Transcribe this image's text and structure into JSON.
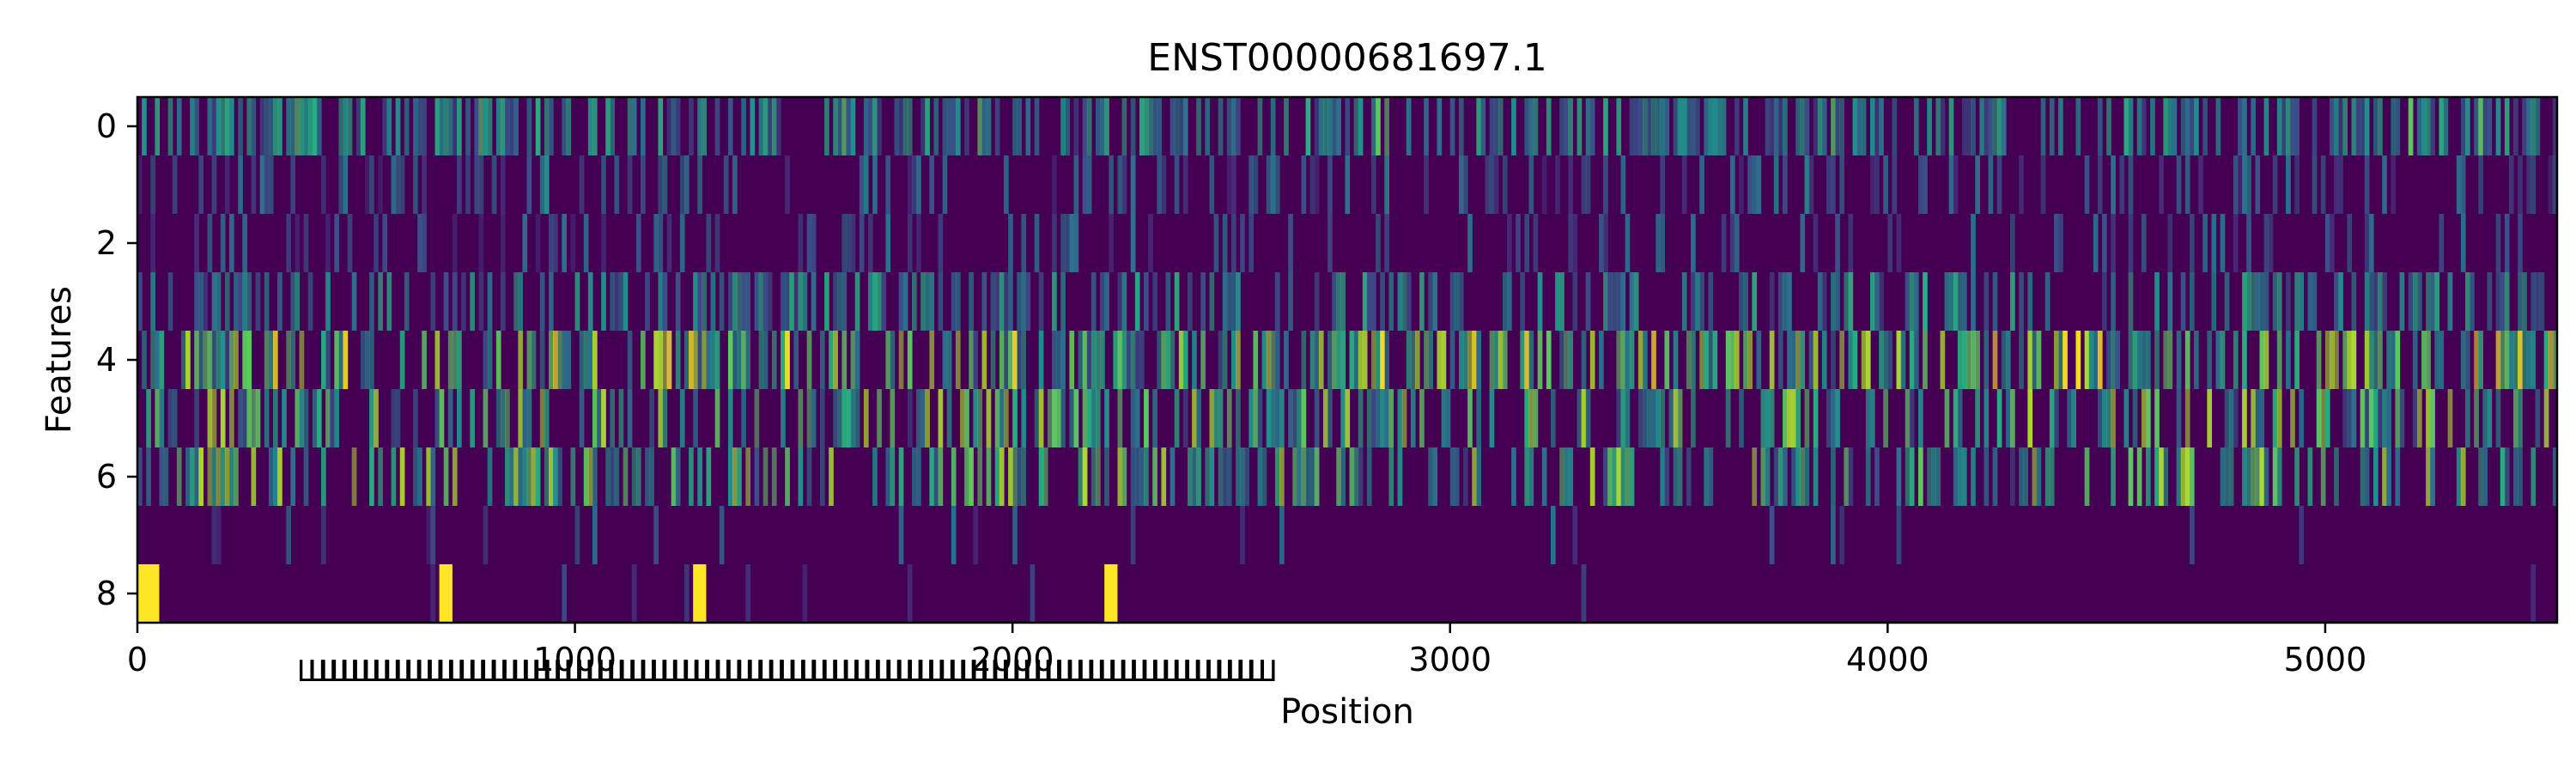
{
  "chart_data": {
    "type": "heatmap",
    "title": "ENST00000681697.1",
    "xlabel": "Position",
    "ylabel": "Features",
    "xlim": [
      0,
      5530
    ],
    "ylim": [
      8.5,
      -0.5
    ],
    "x_ticks": [
      "0",
      "1000",
      "2000",
      "3000",
      "4000",
      "5000"
    ],
    "x_tick_values": [
      0,
      1000,
      2000,
      3000,
      4000,
      5000
    ],
    "y_ticks": [
      "0",
      "2",
      "4",
      "6",
      "8"
    ],
    "y_tick_values": [
      0,
      2,
      4,
      6,
      8
    ],
    "colormap": "viridis",
    "colors": {
      "low": "#440154",
      "mid": "#21918c",
      "high": "#fde725"
    },
    "overlapping_x_annotations": {
      "from": 400,
      "to": 2570,
      "count": 90
    },
    "features": [
      {
        "row": 0,
        "description": "dense vertical streaks, moderate to high"
      },
      {
        "row": 1,
        "description": "mostly dark with sparse streaks"
      },
      {
        "row": 2,
        "description": "mostly dark, occasional teal"
      },
      {
        "row": 3,
        "description": "mixed teal and yellow streaks"
      },
      {
        "row": 4,
        "description": "strong yellow bands"
      },
      {
        "row": 5,
        "description": "alternating yellow and dark blocks"
      },
      {
        "row": 6,
        "description": "yellow/green blocks, fading beyond 5400"
      },
      {
        "row": 7,
        "description": "faint teal blobs, mostly dark"
      },
      {
        "row": 8,
        "description": "dark with bright spots near 0-50, 700, 1280, 2220"
      }
    ]
  }
}
